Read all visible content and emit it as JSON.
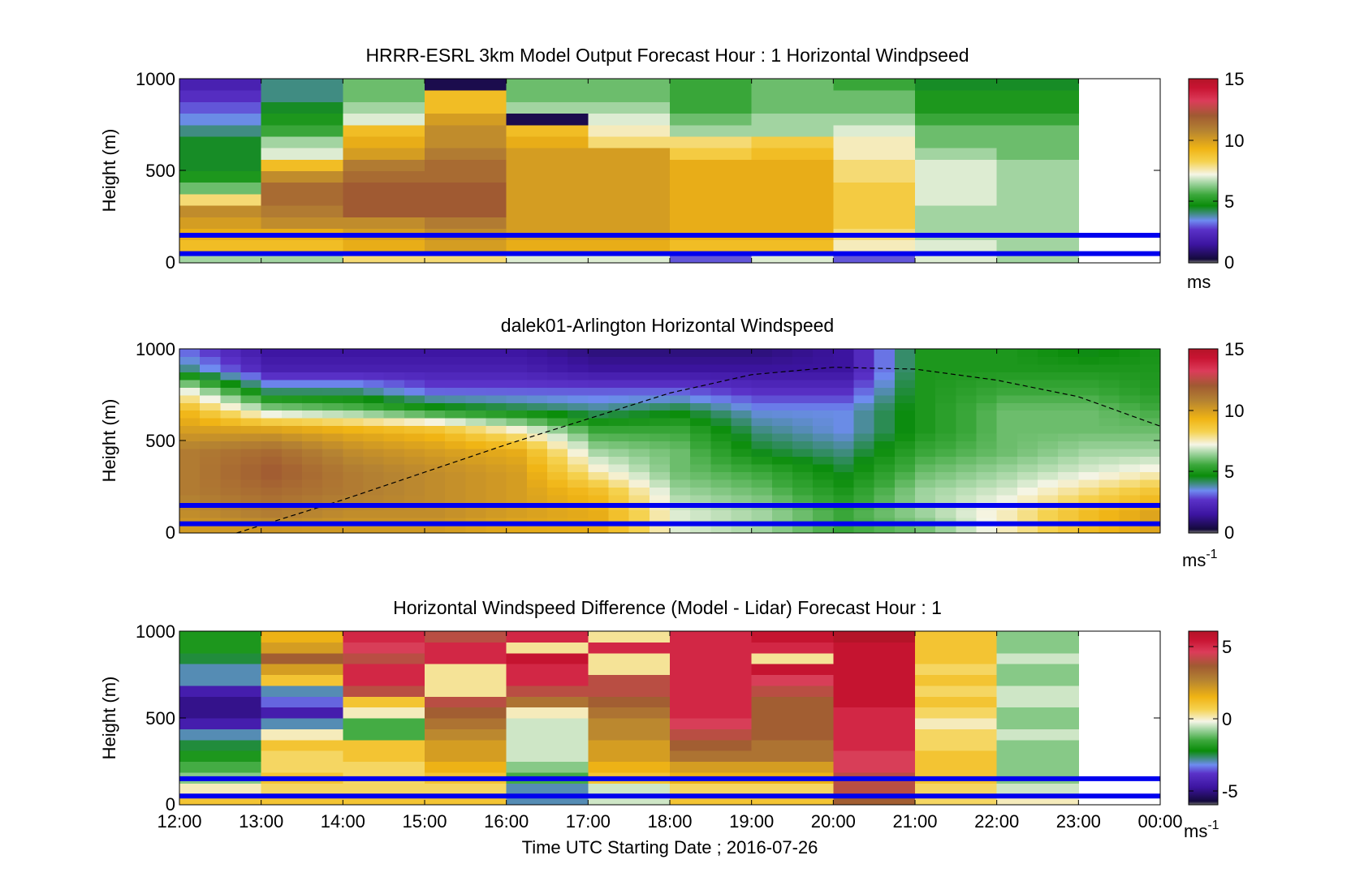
{
  "figure": {
    "xlabel": "Time UTC  Starting Date ; 2016-07-26",
    "xticks": [
      "12:00",
      "13:00",
      "14:00",
      "15:00",
      "16:00",
      "17:00",
      "18:00",
      "19:00",
      "20:00",
      "21:00",
      "22:00",
      "23:00",
      "00:00"
    ],
    "marker_heights_m": [
      150,
      50
    ],
    "marker_color": "#0000ee"
  },
  "chart_data": [
    {
      "type": "heatmap",
      "title": "HRRR-ESRL 3km Model Output   Forecast Hour : 1 Horizontal Windpseed",
      "ylabel": "Height (m)",
      "ylim": [
        0,
        1000
      ],
      "yticks": [
        "0",
        "500",
        "1000"
      ],
      "x_range_hours": [
        12,
        24
      ],
      "colorbar": {
        "ticks": [
          "0",
          "5",
          "10",
          "15"
        ],
        "range": [
          0,
          15
        ],
        "unit": "ms",
        "unit_sup": ""
      },
      "palette": "speed",
      "columns": [
        {
          "t0": 12,
          "t1": 13,
          "v": [
            6.5,
            9,
            9.5,
            10,
            10.5,
            8,
            6,
            5,
            4.5,
            4.5,
            4.5,
            4,
            3.5,
            3,
            2.5,
            2
          ]
        },
        {
          "t0": 13,
          "t1": 14,
          "v": [
            6.5,
            9,
            9.5,
            10.5,
            11,
            11.5,
            11.5,
            10.5,
            9,
            7,
            6.5,
            5.5,
            5,
            4.5,
            4,
            4
          ]
        },
        {
          "t0": 14,
          "t1": 15,
          "v": [
            8,
            9.5,
            10,
            10.5,
            12,
            12,
            12,
            11.5,
            11,
            10,
            9.5,
            9,
            7,
            6.5,
            6,
            6
          ]
        },
        {
          "t0": 15,
          "t1": 16,
          "v": [
            8,
            10,
            10.5,
            11,
            12,
            12,
            12,
            11.5,
            11.5,
            11,
            10.5,
            10.5,
            10,
            9,
            9,
            0.5
          ]
        },
        {
          "t0": 16,
          "t1": 17,
          "v": [
            7,
            9.5,
            10,
            10,
            10,
            10,
            10,
            10,
            10,
            10,
            9.5,
            9,
            0.5,
            6.5,
            6,
            6
          ]
        },
        {
          "t0": 17,
          "t1": 18,
          "v": [
            7,
            9.5,
            10,
            10,
            10,
            10,
            10,
            10,
            10,
            10,
            8,
            7.5,
            7,
            6.5,
            6,
            6
          ]
        },
        {
          "t0": 18,
          "t1": 19,
          "v": [
            3,
            9,
            9.5,
            9.5,
            9.5,
            9.5,
            9.5,
            9.5,
            9.5,
            8.5,
            8,
            6.5,
            6,
            5.5,
            5.5,
            5.5
          ]
        },
        {
          "t0": 19,
          "t1": 20,
          "v": [
            7,
            9,
            9.5,
            9.5,
            9.5,
            9.5,
            9.5,
            9.5,
            9.5,
            9,
            8.5,
            6.5,
            6.5,
            6,
            6,
            6
          ]
        },
        {
          "t0": 20,
          "t1": 21,
          "v": [
            3,
            7.5,
            8,
            8.5,
            8.5,
            8.5,
            8.5,
            8,
            8,
            7.5,
            7.5,
            7,
            6.5,
            6,
            6,
            5.5
          ]
        },
        {
          "t0": 21,
          "t1": 22,
          "v": [
            7,
            7,
            6.5,
            6.5,
            6.5,
            7,
            7,
            7,
            7,
            6.5,
            6,
            6,
            5.5,
            5,
            5,
            4.5
          ]
        },
        {
          "t0": 22,
          "t1": 23,
          "v": [
            6.5,
            6.5,
            6.5,
            6.5,
            6.5,
            6.5,
            6.5,
            6.5,
            6.5,
            6,
            6,
            6,
            5.5,
            5,
            5,
            4.5
          ]
        }
      ]
    },
    {
      "type": "heatmap",
      "title": "dalek01-Arlington  Horizontal Windspeed",
      "ylabel": "Height (m)",
      "ylim": [
        0,
        1000
      ],
      "yticks": [
        "0",
        "500",
        "1000"
      ],
      "x_range_hours": [
        12,
        24
      ],
      "colorbar": {
        "ticks": [
          "0",
          "5",
          "10",
          "15"
        ],
        "range": [
          0,
          15
        ],
        "unit": "ms",
        "unit_sup": "-1"
      },
      "palette": "speed",
      "overlay_line": {
        "x": [
          12.7,
          14,
          15,
          16,
          17,
          18,
          19,
          20,
          21,
          22,
          23,
          24
        ],
        "y": [
          0,
          180,
          330,
          480,
          620,
          760,
          860,
          900,
          890,
          830,
          740,
          580
        ]
      },
      "column_width_h": 0.25,
      "profiles": [
        {
          "t": 12,
          "v": [
            10,
            10.5,
            11,
            11,
            11,
            10,
            9,
            7,
            4,
            3
          ]
        },
        {
          "t": 13,
          "v": [
            10,
            11,
            11.5,
            12,
            11.5,
            10,
            6.5,
            4,
            2,
            1.5
          ]
        },
        {
          "t": 14,
          "v": [
            10,
            10.5,
            11,
            11,
            10.5,
            9.5,
            6,
            4,
            2,
            1.5
          ]
        },
        {
          "t": 15,
          "v": [
            10,
            10.5,
            10.5,
            10.5,
            10,
            9,
            5,
            3,
            2,
            1.5
          ]
        },
        {
          "t": 16,
          "v": [
            9.5,
            10,
            10,
            10,
            9.5,
            7.5,
            4.5,
            3,
            2,
            1.5
          ]
        },
        {
          "t": 17,
          "v": [
            9.5,
            9.5,
            9,
            7.5,
            6.5,
            5.5,
            4,
            3,
            1.5,
            1
          ]
        },
        {
          "t": 18,
          "v": [
            7,
            7,
            6.5,
            6,
            6,
            5.5,
            4.5,
            3,
            1.5,
            1
          ]
        },
        {
          "t": 19,
          "v": [
            6.5,
            6.5,
            6,
            5.5,
            4.5,
            4,
            3.5,
            2.5,
            1.5,
            1
          ]
        },
        {
          "t": 20,
          "v": [
            5.5,
            5.5,
            5,
            4.5,
            4,
            3.5,
            3.5,
            2.5,
            1.5,
            1.5
          ]
        },
        {
          "t": 21,
          "v": [
            6,
            6.5,
            6.5,
            6,
            5.5,
            5,
            5,
            5,
            5,
            5
          ]
        },
        {
          "t": 22,
          "v": [
            7.5,
            7.5,
            7,
            6.5,
            6,
            6,
            6,
            5.5,
            5,
            5
          ]
        },
        {
          "t": 23,
          "v": [
            9,
            9,
            8,
            7,
            6.5,
            6,
            6,
            5.5,
            5,
            4.5
          ]
        },
        {
          "t": 24,
          "v": [
            10,
            10,
            9,
            7.5,
            6.5,
            6,
            5.5,
            5,
            5,
            5
          ]
        }
      ]
    },
    {
      "type": "heatmap",
      "title": "Horizontal Windspeed Difference (Model - Lidar) Forecast Hour : 1",
      "ylabel": "Height (m)",
      "ylim": [
        0,
        1000
      ],
      "yticks": [
        "0",
        "500",
        "1000"
      ],
      "x_range_hours": [
        12,
        24
      ],
      "colorbar": {
        "ticks": [
          "-5",
          "0",
          "5"
        ],
        "range": [
          -6,
          6
        ],
        "unit": "ms",
        "unit_sup": "-1"
      },
      "palette": "diff",
      "columns": [
        {
          "t0": 12,
          "t1": 13,
          "v": [
            1,
            0,
            -1,
            -1.5,
            -2,
            -2.5,
            -3,
            -4.5,
            -5,
            -5,
            -4.5,
            -3,
            -3,
            -2.5,
            -2,
            -2
          ]
        },
        {
          "t0": 13,
          "t1": 14,
          "v": [
            1,
            0.5,
            1,
            0.5,
            0.5,
            1,
            0,
            -3,
            -4.5,
            -3.5,
            -3,
            1,
            2,
            3.5,
            2,
            1.5
          ]
        },
        {
          "t0": 14,
          "t1": 15,
          "v": [
            1,
            0.5,
            0.5,
            0.5,
            1,
            1,
            -1.5,
            -1.5,
            0,
            1,
            4,
            5,
            5,
            4,
            4.5,
            5
          ]
        },
        {
          "t0": 15,
          "t1": 16,
          "v": [
            1,
            0.5,
            1,
            1.5,
            2,
            2,
            2.5,
            3,
            3.5,
            4,
            0.2,
            0.2,
            0.2,
            5,
            5,
            4
          ]
        },
        {
          "t0": 16,
          "t1": 17,
          "v": [
            -3,
            -3,
            -1.5,
            -1,
            -0.5,
            -0.5,
            -0.5,
            -0.5,
            0,
            3,
            4,
            5,
            5,
            5.5,
            0.2,
            5
          ]
        },
        {
          "t0": 17,
          "t1": 18,
          "v": [
            -0.5,
            -0.5,
            1,
            1.5,
            2,
            2,
            2.5,
            2.5,
            3,
            3.5,
            4,
            4,
            0.2,
            0.2,
            5,
            0.2
          ]
        },
        {
          "t0": 18,
          "t1": 19,
          "v": [
            1,
            0.5,
            1.5,
            2,
            3,
            3.5,
            4,
            4.5,
            5,
            5,
            5,
            5,
            5,
            5,
            5,
            5
          ]
        },
        {
          "t0": 19,
          "t1": 20,
          "v": [
            1,
            0.5,
            1.5,
            2,
            3,
            3,
            3.5,
            3.5,
            3.5,
            3.5,
            4,
            4.5,
            5.5,
            0.2,
            5,
            5.5
          ]
        },
        {
          "t0": 20,
          "t1": 21,
          "v": [
            3.5,
            4,
            4,
            4.5,
            4.5,
            5,
            5,
            5,
            5,
            5.5,
            5.5,
            5.5,
            5.5,
            5.5,
            5.5,
            6
          ]
        },
        {
          "t0": 21,
          "t1": 22,
          "v": [
            0.5,
            0.5,
            1,
            1,
            1,
            0.5,
            0.5,
            0,
            0.5,
            1,
            0.5,
            1,
            0.5,
            1,
            1,
            1
          ]
        },
        {
          "t0": 22,
          "t1": 23,
          "v": [
            0,
            -0.5,
            -1,
            -1,
            -1,
            -1,
            -0.5,
            -1,
            -1,
            -0.5,
            -0.5,
            -1,
            -1,
            -0.5,
            -1,
            -1
          ]
        }
      ]
    }
  ]
}
